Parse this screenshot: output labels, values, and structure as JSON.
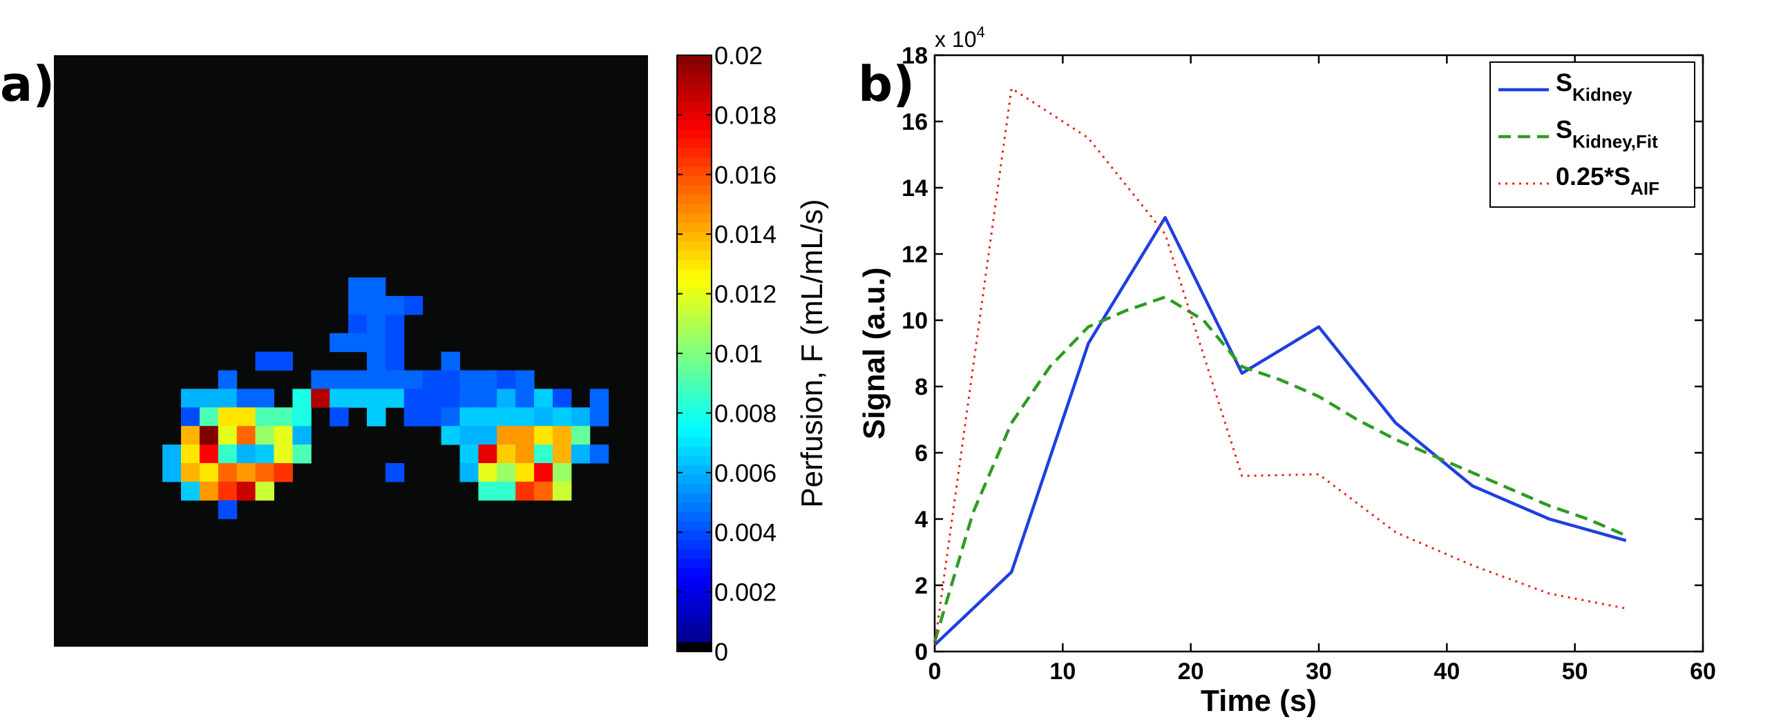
{
  "chart_data": [
    {
      "type": "heatmap",
      "panel_label": "a)",
      "colorbar": {
        "label": "Perfusion, F (mL/mL/s)",
        "range": [
          0,
          0.02
        ],
        "ticks": [
          "0",
          "0.002",
          "0.004",
          "0.006",
          "0.008",
          "0.01",
          "0.012",
          "0.014",
          "0.016",
          "0.018",
          "0.02"
        ]
      },
      "grid": {
        "cols": 32,
        "rows": 32
      },
      "cells": [
        [
          9,
          12,
          0.0045
        ],
        [
          10,
          12,
          0.0045
        ],
        [
          11,
          13,
          0.0045
        ],
        [
          9,
          13,
          0.0045
        ],
        [
          10,
          13,
          0.0045
        ],
        [
          12,
          13,
          0.004
        ],
        [
          9,
          14,
          0.004
        ],
        [
          10,
          14,
          0.0045
        ],
        [
          11,
          14,
          0.004
        ],
        [
          8,
          15,
          0.0045
        ],
        [
          9,
          15,
          0.0045
        ],
        [
          10,
          15,
          0.0045
        ],
        [
          11,
          15,
          0.004
        ],
        [
          4,
          16,
          0.004
        ],
        [
          5,
          16,
          0.004
        ],
        [
          10,
          16,
          0.0045
        ],
        [
          11,
          16,
          0.004
        ],
        [
          14,
          16,
          0.0045
        ],
        [
          2,
          17,
          0.0045
        ],
        [
          7,
          17,
          0.0045
        ],
        [
          8,
          17,
          0.0045
        ],
        [
          9,
          17,
          0.0045
        ],
        [
          10,
          17,
          0.0045
        ],
        [
          11,
          17,
          0.0045
        ],
        [
          12,
          17,
          0.0045
        ],
        [
          13,
          17,
          0.004
        ],
        [
          14,
          17,
          0.004
        ],
        [
          15,
          17,
          0.0045
        ],
        [
          16,
          17,
          0.0045
        ],
        [
          17,
          17,
          0.004
        ],
        [
          18,
          17,
          0.0045
        ],
        [
          0,
          18,
          0.006
        ],
        [
          1,
          18,
          0.006
        ],
        [
          2,
          18,
          0.006
        ],
        [
          3,
          18,
          0.0045
        ],
        [
          4,
          18,
          0.0045
        ],
        [
          6,
          18,
          0.008
        ],
        [
          7,
          18,
          0.019
        ],
        [
          8,
          18,
          0.0065
        ],
        [
          9,
          18,
          0.0065
        ],
        [
          10,
          18,
          0.0065
        ],
        [
          11,
          18,
          0.0065
        ],
        [
          12,
          18,
          0.004
        ],
        [
          13,
          18,
          0.004
        ],
        [
          14,
          18,
          0.004
        ],
        [
          15,
          18,
          0.0045
        ],
        [
          16,
          18,
          0.0045
        ],
        [
          17,
          18,
          0.006
        ],
        [
          18,
          18,
          0.0045
        ],
        [
          19,
          18,
          0.0065
        ],
        [
          20,
          18,
          0.004
        ],
        [
          22,
          18,
          0.0045
        ],
        [
          0,
          19,
          0.004
        ],
        [
          1,
          19,
          0.009
        ],
        [
          2,
          19,
          0.013
        ],
        [
          3,
          19,
          0.013
        ],
        [
          4,
          19,
          0.009
        ],
        [
          5,
          19,
          0.009
        ],
        [
          6,
          19,
          0.008
        ],
        [
          8,
          19,
          0.004
        ],
        [
          10,
          19,
          0.0065
        ],
        [
          12,
          19,
          0.004
        ],
        [
          13,
          19,
          0.004
        ],
        [
          14,
          19,
          0.0045
        ],
        [
          15,
          19,
          0.0065
        ],
        [
          16,
          19,
          0.0065
        ],
        [
          17,
          19,
          0.0065
        ],
        [
          18,
          19,
          0.0065
        ],
        [
          19,
          19,
          0.006
        ],
        [
          20,
          19,
          0.0065
        ],
        [
          21,
          19,
          0.006
        ],
        [
          22,
          19,
          0.0045
        ],
        [
          0,
          20,
          0.014
        ],
        [
          1,
          20,
          0.02
        ],
        [
          2,
          20,
          0.012
        ],
        [
          3,
          20,
          0.0155
        ],
        [
          4,
          20,
          0.0105
        ],
        [
          5,
          20,
          0.012
        ],
        [
          6,
          20,
          0.006
        ],
        [
          14,
          20,
          0.0065
        ],
        [
          15,
          20,
          0.006
        ],
        [
          16,
          20,
          0.006
        ],
        [
          17,
          20,
          0.0145
        ],
        [
          18,
          20,
          0.0145
        ],
        [
          19,
          20,
          0.013
        ],
        [
          20,
          20,
          0.014
        ],
        [
          21,
          20,
          0.0095
        ],
        [
          -1,
          21,
          0.006
        ],
        [
          0,
          21,
          0.013
        ],
        [
          1,
          21,
          0.0175
        ],
        [
          2,
          21,
          0.0085
        ],
        [
          3,
          21,
          0.006
        ],
        [
          4,
          21,
          0.0065
        ],
        [
          5,
          21,
          0.012
        ],
        [
          6,
          21,
          0.009
        ],
        [
          15,
          21,
          0.0065
        ],
        [
          16,
          21,
          0.018
        ],
        [
          17,
          21,
          0.0135
        ],
        [
          18,
          21,
          0.0145
        ],
        [
          19,
          21,
          0.0085
        ],
        [
          20,
          21,
          0.014
        ],
        [
          21,
          21,
          0.006
        ],
        [
          22,
          21,
          0.0045
        ],
        [
          -1,
          22,
          0.006
        ],
        [
          0,
          22,
          0.014
        ],
        [
          1,
          22,
          0.013
        ],
        [
          2,
          22,
          0.0155
        ],
        [
          3,
          22,
          0.0145
        ],
        [
          4,
          22,
          0.0155
        ],
        [
          5,
          22,
          0.0165
        ],
        [
          11,
          22,
          0.004
        ],
        [
          15,
          22,
          0.006
        ],
        [
          16,
          22,
          0.012
        ],
        [
          17,
          22,
          0.0105
        ],
        [
          18,
          22,
          0.013
        ],
        [
          19,
          22,
          0.0175
        ],
        [
          20,
          22,
          0.0105
        ],
        [
          0,
          23,
          0.0065
        ],
        [
          1,
          23,
          0.0145
        ],
        [
          2,
          23,
          0.0165
        ],
        [
          3,
          23,
          0.0185
        ],
        [
          4,
          23,
          0.0115
        ],
        [
          16,
          23,
          0.0085
        ],
        [
          17,
          23,
          0.0085
        ],
        [
          18,
          23,
          0.0165
        ],
        [
          19,
          23,
          0.0155
        ],
        [
          20,
          23,
          0.0115
        ],
        [
          2,
          24,
          0.004
        ]
      ]
    },
    {
      "type": "line",
      "panel_label": "b)",
      "xlabel": "Time (s)",
      "ylabel": "Signal (a.u.)",
      "y_multiplier": "x 10",
      "y_multiplier_exp": "4",
      "xlim": [
        0,
        60
      ],
      "ylim": [
        0,
        18
      ],
      "xticks": [
        "0",
        "10",
        "20",
        "30",
        "40",
        "50",
        "60"
      ],
      "yticks": [
        "0",
        "2",
        "4",
        "6",
        "8",
        "10",
        "12",
        "14",
        "16",
        "18"
      ],
      "legend_position": "top-right",
      "series": [
        {
          "name": "S_Kidney",
          "legend_main": "S",
          "legend_sub": "Kidney",
          "color": "#1f3fe0",
          "style": "solid",
          "x": [
            0,
            6,
            12,
            18,
            24,
            30,
            36,
            42,
            48,
            54
          ],
          "y": [
            0.2,
            2.4,
            9.3,
            13.1,
            8.4,
            9.8,
            6.9,
            5.0,
            4.0,
            3.35
          ]
        },
        {
          "name": "S_Kidney,Fit",
          "legend_main": "S",
          "legend_sub": "Kidney,Fit",
          "color": "#2e9c20",
          "style": "dashed",
          "x": [
            0,
            3,
            6,
            9,
            12,
            15,
            18,
            21,
            24,
            27,
            30,
            33,
            36,
            39,
            42,
            45,
            48,
            51,
            54
          ],
          "y": [
            0.3,
            4.2,
            6.9,
            8.6,
            9.8,
            10.3,
            10.7,
            10.0,
            8.6,
            8.2,
            7.7,
            7.0,
            6.4,
            5.9,
            5.4,
            4.9,
            4.4,
            4.0,
            3.5
          ]
        },
        {
          "name": "0.25*S_AIF",
          "legend_main": "0.25*S",
          "legend_sub": "AIF",
          "color": "#e8201a",
          "style": "dotted",
          "x": [
            0,
            6,
            12,
            18,
            24,
            30,
            36,
            42,
            48,
            54
          ],
          "y": [
            0.2,
            17.0,
            15.5,
            12.6,
            5.3,
            5.35,
            3.6,
            2.6,
            1.75,
            1.3
          ]
        }
      ]
    }
  ]
}
